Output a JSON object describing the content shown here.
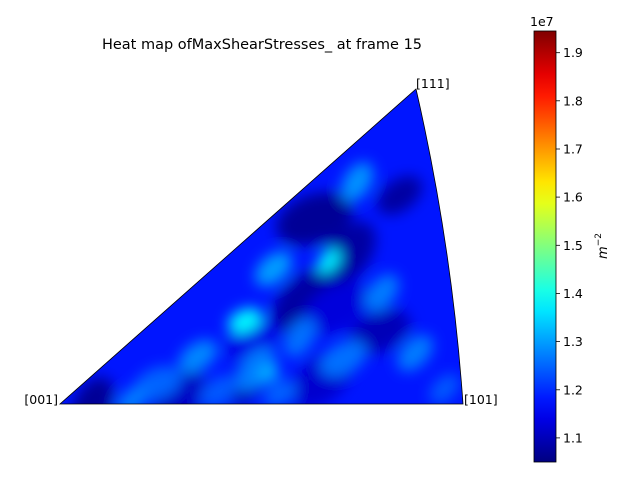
{
  "chart_data": {
    "type": "heatmap",
    "title": "Heat map ofMaxShearStresses_ at frame 15",
    "corner_labels": [
      "[001]",
      "[101]",
      "[111]"
    ],
    "colorbar": {
      "label": "$m^{-2}$",
      "label_base": "m",
      "label_exponent": "−2",
      "offset_text": "1e7",
      "range": [
        1.05,
        1.945
      ],
      "ticks": [
        "1.1",
        "1.2",
        "1.3",
        "1.4",
        "1.5",
        "1.6",
        "1.7",
        "1.8",
        "1.9"
      ],
      "tick_values": [
        1.1,
        1.2,
        1.3,
        1.4,
        1.5,
        1.6,
        1.7,
        1.8,
        1.9
      ],
      "colormap": "jet"
    },
    "base_value": 1.18,
    "regions": [
      {
        "u": 0.7,
        "v": 0.84,
        "value": 1.07,
        "r": 0.11
      },
      {
        "u": 0.66,
        "v": 0.5,
        "value": 1.08,
        "r": 0.12
      },
      {
        "u": 0.77,
        "v": 0.62,
        "value": 1.08,
        "r": 0.1
      },
      {
        "u": 0.72,
        "v": 0.42,
        "value": 1.13,
        "r": 0.1
      },
      {
        "u": 0.47,
        "v": 0.14,
        "value": 1.09,
        "r": 0.07
      },
      {
        "u": 0.82,
        "v": 0.28,
        "value": 1.1,
        "r": 0.09
      },
      {
        "u": 0.66,
        "v": 0.12,
        "value": 1.12,
        "r": 0.1
      },
      {
        "u": 0.08,
        "v": 0.02,
        "value": 1.07,
        "r": 0.08
      },
      {
        "u": 0.92,
        "v": 0.72,
        "value": 1.08,
        "r": 0.07
      },
      {
        "u": 0.3,
        "v": 0.08,
        "value": 1.11,
        "r": 0.09
      },
      {
        "u": 0.5,
        "v": 0.4,
        "value": 1.14,
        "r": 0.08
      },
      {
        "u": 0.72,
        "v": 0.63,
        "value": 1.37,
        "r": 0.04
      },
      {
        "u": 0.49,
        "v": 0.54,
        "value": 1.38,
        "r": 0.05
      },
      {
        "u": 0.58,
        "v": 0.74,
        "value": 1.3,
        "r": 0.06
      },
      {
        "u": 0.82,
        "v": 0.86,
        "value": 1.29,
        "r": 0.06
      },
      {
        "u": 0.36,
        "v": 0.42,
        "value": 1.28,
        "r": 0.06
      },
      {
        "u": 0.5,
        "v": 0.22,
        "value": 1.27,
        "r": 0.07
      },
      {
        "u": 0.72,
        "v": 0.2,
        "value": 1.26,
        "r": 0.07
      },
      {
        "u": 0.9,
        "v": 0.18,
        "value": 1.27,
        "r": 0.06
      },
      {
        "u": 0.25,
        "v": 0.26,
        "value": 1.25,
        "r": 0.07
      },
      {
        "u": 0.18,
        "v": 0.06,
        "value": 1.27,
        "r": 0.05
      },
      {
        "u": 0.62,
        "v": 0.34,
        "value": 1.26,
        "r": 0.06
      },
      {
        "u": 0.4,
        "v": 0.1,
        "value": 1.24,
        "r": 0.06
      },
      {
        "u": 0.84,
        "v": 0.42,
        "value": 1.27,
        "r": 0.06
      },
      {
        "u": 0.55,
        "v": 0.06,
        "value": 1.25,
        "r": 0.05
      },
      {
        "u": 0.96,
        "v": 0.05,
        "value": 1.24,
        "r": 0.05
      },
      {
        "u": 0.53,
        "v": 0.18,
        "value": 1.33,
        "r": 0.03
      }
    ]
  }
}
